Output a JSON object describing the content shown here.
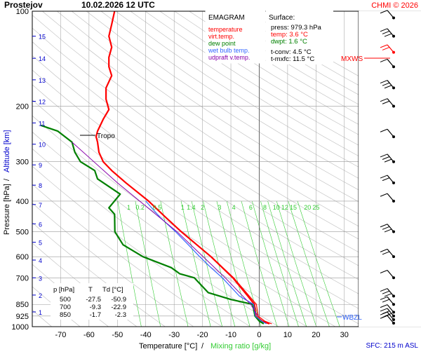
{
  "header": {
    "station": "Prostejov",
    "datetime": "10.02.2026 12 UTC",
    "credit": "CHMI © 2026"
  },
  "legend": {
    "title": "EMAGRAM",
    "items": [
      {
        "label": "temperature",
        "color": "#ff0000"
      },
      {
        "label": "virt.temp.",
        "color": "#ff0000"
      },
      {
        "label": "dew point",
        "color": "#008000"
      },
      {
        "label": "wet bulb temp.",
        "color": "#3366ff"
      },
      {
        "label": "udpraft v.temp.",
        "color": "#8800aa"
      }
    ]
  },
  "surface": {
    "title": "Surface:",
    "lines": [
      {
        "text": "press: 979.3 hPa",
        "color": "#000000"
      },
      {
        "text": "temp: 3.6 °C",
        "color": "#ff0000"
      },
      {
        "text": "dwpt: 1.6 °C",
        "color": "#008000"
      },
      {
        "text": "t-conv: 4.5 °C",
        "color": "#000000"
      },
      {
        "text": "t-mxfc: 11.5 °C",
        "color": "#000000"
      }
    ]
  },
  "levels_table": {
    "headers": [
      "p [hPa]",
      "T",
      "Td [°C]"
    ],
    "rows": [
      [
        "500",
        "-27.5",
        "-50.9"
      ],
      [
        "700",
        "-9.3",
        "-22.9"
      ],
      [
        "850",
        "-1.7",
        "-2.3"
      ]
    ]
  },
  "annotations": {
    "tropo": "Tropo",
    "mxws": "MXWS",
    "wbzl": "WBZL",
    "sfc": "SFC: 215 m ASL"
  },
  "axes": {
    "xlabel_main": "Temperature [°C]",
    "xlabel_sep": "/",
    "xlabel_mix": "Mixing ratio [g/kg]",
    "ylabel_main": "Pressure [hPa]",
    "ylabel_sep": "/",
    "ylabel_alt": "Altitude [km]"
  },
  "colors": {
    "temperature": "#ff0000",
    "dewpoint": "#008000",
    "wetbulb": "#3366ff",
    "parcel": "#8800aa",
    "mixing": "#33cc33",
    "altitude": "#0000cc",
    "dry_adiabat": "#bbbbbb",
    "grid": "#999999"
  },
  "chart_data": {
    "type": "line",
    "xlim": [
      -80,
      35
    ],
    "ylim": [
      1000,
      100
    ],
    "y_scale": "log",
    "grid": true,
    "pressure_ticks": [
      100,
      200,
      300,
      400,
      500,
      600,
      700,
      850,
      925,
      1000
    ],
    "temperature_ticks": [
      -70,
      -60,
      -50,
      -40,
      -30,
      -20,
      -10,
      0,
      10,
      20,
      30
    ],
    "altitude_labels_km": [
      {
        "km": "1",
        "p": 898
      },
      {
        "km": "2",
        "p": 794
      },
      {
        "km": "3",
        "p": 700
      },
      {
        "km": "4",
        "p": 615
      },
      {
        "km": "5",
        "p": 540
      },
      {
        "km": "6",
        "p": 472
      },
      {
        "km": "7",
        "p": 410
      },
      {
        "km": "8",
        "p": 356
      },
      {
        "km": "9",
        "p": 307
      },
      {
        "km": "10",
        "p": 264
      },
      {
        "km": "11",
        "p": 226
      },
      {
        "km": "12",
        "p": 193
      },
      {
        "km": "13",
        "p": 165
      },
      {
        "km": "14",
        "p": 141
      },
      {
        "km": "15",
        "p": 120
      }
    ],
    "mixing_ratio_labels": {
      "p": 400,
      "values": [
        "1",
        "0.2",
        "0.5",
        "1",
        "1.4",
        "2",
        "3",
        "4",
        "6",
        "8",
        "10",
        "12",
        "15",
        "20",
        "25"
      ],
      "temps": [
        -46,
        -42,
        -36,
        -27,
        -24,
        -20,
        -14,
        -9,
        -3,
        2,
        6,
        9,
        12,
        17,
        20
      ]
    },
    "series": [
      {
        "name": "temperature",
        "points": [
          [
            3.6,
            979
          ],
          [
            1,
            960
          ],
          [
            -1.2,
            925
          ],
          [
            -1.7,
            850
          ],
          [
            -4,
            800
          ],
          [
            -9.3,
            700
          ],
          [
            -13,
            650
          ],
          [
            -17,
            600
          ],
          [
            -22,
            550
          ],
          [
            -27.5,
            500
          ],
          [
            -33,
            450
          ],
          [
            -39,
            400
          ],
          [
            -47,
            350
          ],
          [
            -52,
            320
          ],
          [
            -55,
            300
          ],
          [
            -56.5,
            280
          ],
          [
            -57,
            260
          ],
          [
            -57.5,
            250
          ],
          [
            -57,
            240
          ],
          [
            -55,
            220
          ],
          [
            -53,
            205
          ],
          [
            -54,
            190
          ],
          [
            -54,
            175
          ],
          [
            -52,
            160
          ],
          [
            -53,
            150
          ],
          [
            -53,
            140
          ],
          [
            -52,
            130
          ],
          [
            -53,
            120
          ],
          [
            -52,
            110
          ],
          [
            -51,
            100
          ]
        ]
      },
      {
        "name": "virt.temp.",
        "points": [
          [
            4.4,
            979
          ],
          [
            1.9,
            960
          ],
          [
            -0.4,
            925
          ],
          [
            -1,
            850
          ],
          [
            -3.5,
            800
          ],
          [
            -9,
            700
          ],
          [
            -12.8,
            650
          ],
          [
            -16.9,
            600
          ],
          [
            -22,
            550
          ],
          [
            -27.5,
            500
          ],
          [
            -33,
            450
          ],
          [
            -39,
            400
          ],
          [
            -47,
            350
          ],
          [
            -52,
            320
          ],
          [
            -55,
            300
          ],
          [
            -56.5,
            280
          ],
          [
            -57,
            260
          ],
          [
            -57.5,
            250
          ],
          [
            -57,
            240
          ],
          [
            -55,
            220
          ],
          [
            -53,
            205
          ],
          [
            -54,
            190
          ],
          [
            -54,
            175
          ],
          [
            -52,
            160
          ],
          [
            -53,
            150
          ],
          [
            -53,
            140
          ],
          [
            -52,
            130
          ],
          [
            -53,
            120
          ],
          [
            -52,
            110
          ],
          [
            -51,
            100
          ]
        ]
      },
      {
        "name": "dew point",
        "points": [
          [
            1.6,
            979
          ],
          [
            0,
            960
          ],
          [
            -1.5,
            925
          ],
          [
            -2.3,
            850
          ],
          [
            -10,
            820
          ],
          [
            -18,
            780
          ],
          [
            -22.9,
            700
          ],
          [
            -28,
            680
          ],
          [
            -31,
            650
          ],
          [
            -41,
            600
          ],
          [
            -48,
            550
          ],
          [
            -50.9,
            500
          ],
          [
            -51,
            440
          ],
          [
            -53,
            420
          ],
          [
            -49,
            380
          ],
          [
            -57,
            340
          ],
          [
            -58,
            320
          ],
          [
            -63,
            300
          ],
          [
            -65,
            280
          ],
          [
            -66,
            260
          ],
          [
            -71,
            240
          ],
          [
            -77,
            230
          ]
        ]
      },
      {
        "name": "wet bulb temp.",
        "points": [
          [
            2.5,
            979
          ],
          [
            0.8,
            960
          ],
          [
            -1.4,
            925
          ],
          [
            -2,
            850
          ],
          [
            -7,
            800
          ],
          [
            -13,
            700
          ],
          [
            -17,
            650
          ],
          [
            -21,
            600
          ],
          [
            -25,
            550
          ],
          [
            -29.5,
            500
          ],
          [
            -35,
            450
          ],
          [
            -40,
            400
          ]
        ]
      },
      {
        "name": "udpraft v.temp.",
        "points": [
          [
            -0.5,
            925
          ],
          [
            -3,
            850
          ],
          [
            -12,
            700
          ],
          [
            -29,
            500
          ],
          [
            -50,
            350
          ],
          [
            -66,
            260
          ]
        ]
      }
    ],
    "wind_barbs": {
      "x_position": "right",
      "levels": [
        {
          "p": 975,
          "highlight": false
        },
        {
          "p": 950,
          "highlight": false
        },
        {
          "p": 925,
          "highlight": false
        },
        {
          "p": 900,
          "highlight": false
        },
        {
          "p": 850,
          "highlight": false
        },
        {
          "p": 800,
          "highlight": false
        },
        {
          "p": 700,
          "highlight": false
        },
        {
          "p": 600,
          "highlight": false
        },
        {
          "p": 500,
          "highlight": false
        },
        {
          "p": 400,
          "highlight": false
        },
        {
          "p": 350,
          "highlight": false
        },
        {
          "p": 300,
          "highlight": false
        },
        {
          "p": 250,
          "highlight": false
        },
        {
          "p": 200,
          "highlight": false
        },
        {
          "p": 175,
          "highlight": false
        },
        {
          "p": 150,
          "highlight": false
        },
        {
          "p": 135,
          "highlight": true
        },
        {
          "p": 120,
          "highlight": false
        },
        {
          "p": 105,
          "highlight": false
        }
      ]
    }
  }
}
